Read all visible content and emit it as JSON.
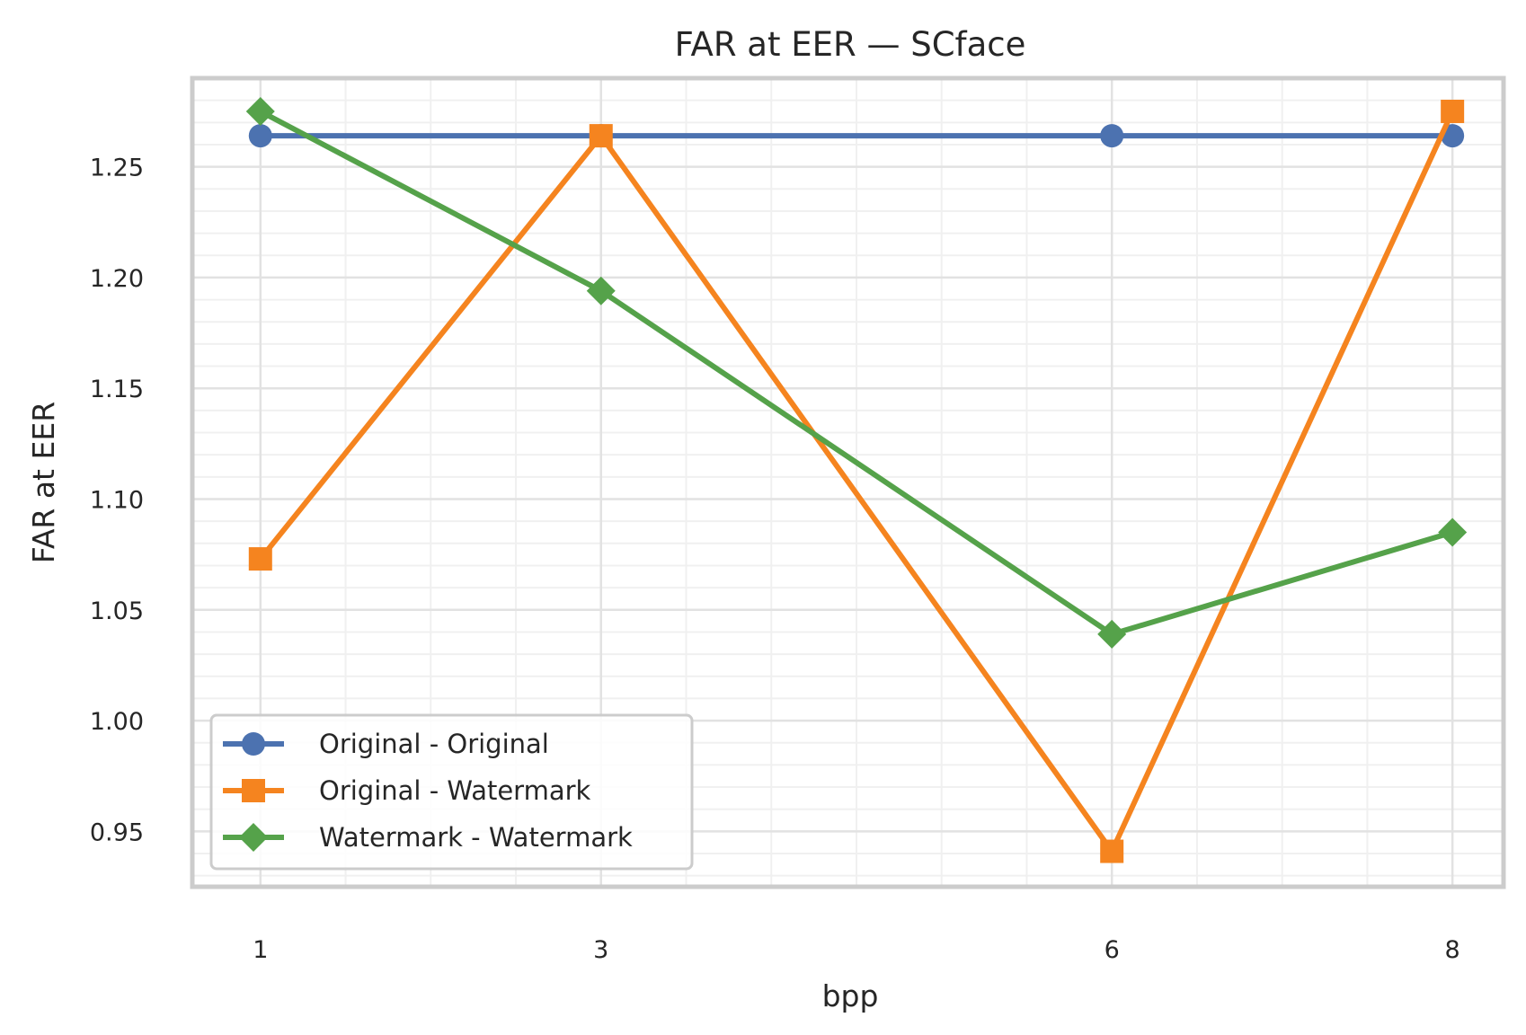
{
  "chart_data": {
    "type": "line",
    "title": "FAR at EER — SCface",
    "xlabel": "bpp",
    "ylabel": "FAR at EER",
    "x": [
      1,
      3,
      6,
      8
    ],
    "x_tick_labels": [
      "1",
      "3",
      "6",
      "8"
    ],
    "y_ticks": [
      0.95,
      1.0,
      1.05,
      1.1,
      1.15,
      1.2,
      1.25
    ],
    "y_tick_labels": [
      "0.95",
      "1.00",
      "1.05",
      "1.10",
      "1.15",
      "1.20",
      "1.25"
    ],
    "xlim": [
      0.6,
      8.3
    ],
    "ylim": [
      0.925,
      1.29
    ],
    "grid": true,
    "legend_position": "lower-left",
    "series": [
      {
        "name": "Original - Original",
        "marker": "circle",
        "color": "#4c72b0",
        "values": [
          1.264,
          1.264,
          1.264,
          1.264
        ]
      },
      {
        "name": "Original - Watermark",
        "marker": "square",
        "color": "#f5841f",
        "values": [
          1.073,
          1.264,
          0.941,
          1.275
        ]
      },
      {
        "name": "Watermark - Watermark",
        "marker": "diamond",
        "color": "#55a24a",
        "values": [
          1.275,
          1.194,
          1.039,
          1.085
        ]
      }
    ]
  }
}
